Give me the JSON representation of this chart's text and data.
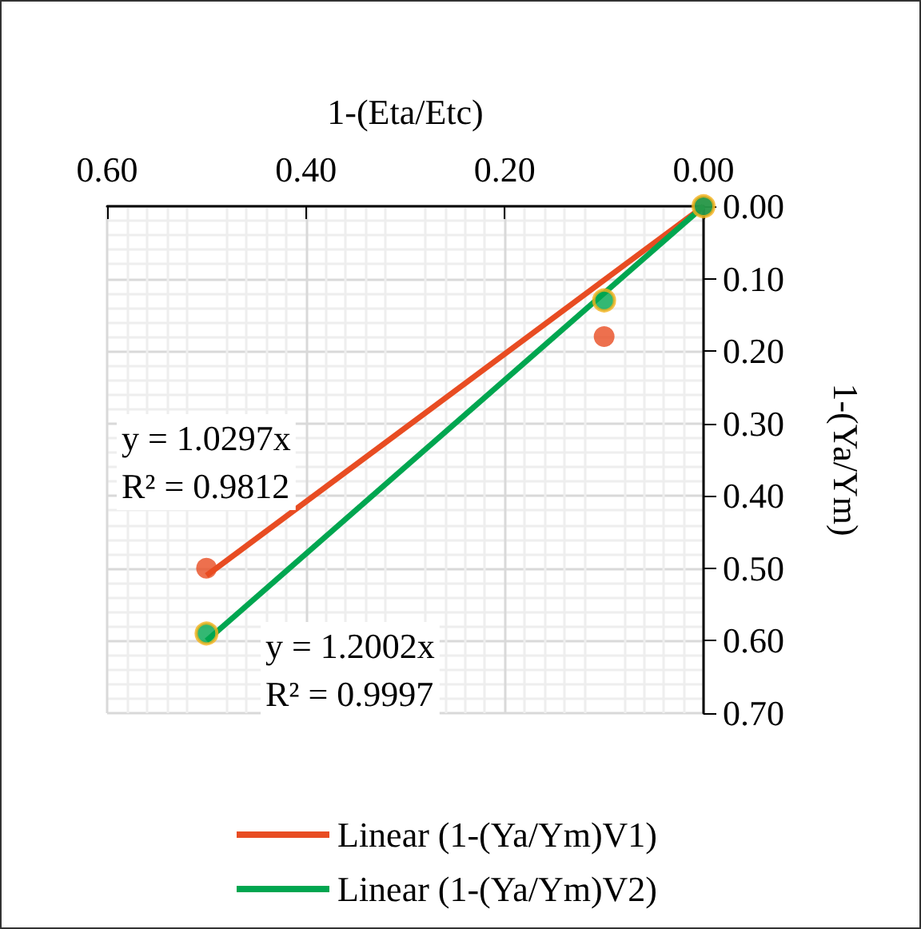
{
  "chart_data": {
    "type": "scatter",
    "xlabel": "1-(Eta/Etc)",
    "ylabel": "1-(Ya/Ym)",
    "xlim": [
      0.6,
      0
    ],
    "xticks": [
      {
        "value": 0.6,
        "label": "0.60"
      },
      {
        "value": 0.4,
        "label": "0.40"
      },
      {
        "value": 0.2,
        "label": "0.20"
      },
      {
        "value": 0,
        "label": "0.00"
      }
    ],
    "ylim": [
      0.7,
      0
    ],
    "yticks": [
      {
        "value": 0,
        "label": "0.00"
      },
      {
        "value": 0.1,
        "label": "0.10"
      },
      {
        "value": 0.2,
        "label": "0.20"
      },
      {
        "value": 0.3,
        "label": "0.30"
      },
      {
        "value": 0.4,
        "label": "0.40"
      },
      {
        "value": 0.5,
        "label": "0.50"
      },
      {
        "value": 0.6,
        "label": "0.60"
      },
      {
        "value": 0.7,
        "label": "0.70"
      }
    ],
    "grid": true,
    "legend": "bottom",
    "marker": "circle",
    "series": [
      {
        "color": "#e84c22",
        "x": [
          0,
          0.1,
          0.5
        ],
        "values": [
          0,
          0.18,
          0.5
        ]
      },
      {
        "color": "#00a650",
        "x": [
          0,
          0.1,
          0.5
        ],
        "values": [
          0,
          0.13,
          0.59
        ]
      },
      {
        "type": "line",
        "marker": "none",
        "name": "Linear (1-(Ya/Ym)V1)",
        "color": "#e84c22",
        "x": [
          0,
          0.5
        ],
        "values": [
          0,
          0.51
        ]
      },
      {
        "type": "line",
        "marker": "none",
        "name": "Linear (1-(Ya/Ym)V2)",
        "color": "#00a650",
        "x": [
          0,
          0.5
        ],
        "values": [
          0,
          0.6
        ]
      }
    ],
    "annotations": [
      "y = 1.0297x\nR² = 0.9812",
      "y = 1.2002x\nR² = 0.9997"
    ]
  }
}
